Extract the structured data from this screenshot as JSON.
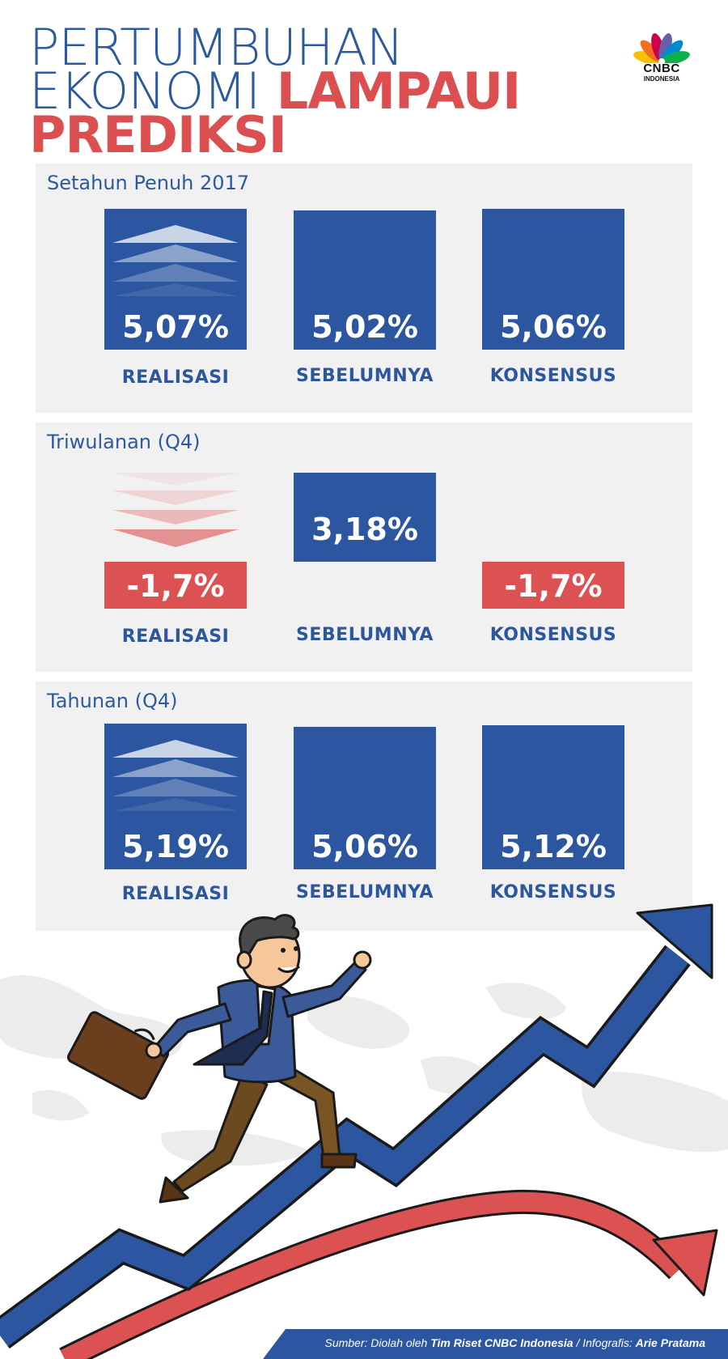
{
  "title": {
    "line1": "PERTUMBUHAN",
    "line2_blue": "EKONOMI",
    "line2_red": "LAMPAUI",
    "line3": "PREDIKSI"
  },
  "logo": {
    "name": "CNBC",
    "sub": "INDONESIA",
    "icon": "peacock-logo"
  },
  "colors": {
    "blue": "#2c56a0",
    "red": "#dc5152",
    "panel": "#f1f1f2"
  },
  "panels": [
    {
      "label": "Setahun Penuh 2017",
      "items": [
        {
          "value": "5,07%",
          "label": "REALISASI",
          "trend": "up",
          "color": "blue"
        },
        {
          "value": "5,02%",
          "label": "SEBELUMNYA",
          "color": "blue"
        },
        {
          "value": "5,06%",
          "label": "KONSENSUS",
          "color": "blue"
        }
      ]
    },
    {
      "label": "Triwulanan (Q4)",
      "items": [
        {
          "value": "-1,7%",
          "label": "REALISASI",
          "trend": "down",
          "color": "red"
        },
        {
          "value": "3,18%",
          "label": "SEBELUMNYA",
          "color": "blue"
        },
        {
          "value": "-1,7%",
          "label": "KONSENSUS",
          "color": "red"
        }
      ]
    },
    {
      "label": "Tahunan (Q4)",
      "items": [
        {
          "value": "5,19%",
          "label": "REALISASI",
          "trend": "up",
          "color": "blue"
        },
        {
          "value": "5,06%",
          "label": "SEBELUMNYA",
          "color": "blue"
        },
        {
          "value": "5,12%",
          "label": "KONSENSUS",
          "color": "blue"
        }
      ]
    }
  ],
  "footer": {
    "prefix": "Sumber: Diolah oleh ",
    "team": "Tim Riset CNBC Indonesia",
    "mid": " / Infografis: ",
    "author": "Arie Pratama"
  }
}
